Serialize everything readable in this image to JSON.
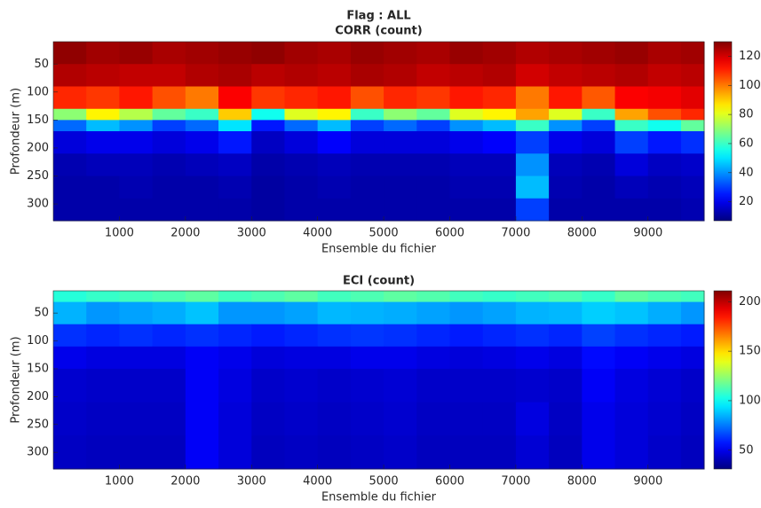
{
  "chart_data": [
    {
      "type": "heatmap",
      "suptitle": "Flag : ALL",
      "title": "CORR (count)",
      "xlabel": "Ensemble du fichier",
      "ylabel": "Profondeur (m)",
      "colormap": "jet",
      "xlim": [
        0,
        9850
      ],
      "ylim": [
        330,
        10
      ],
      "xticks": [
        1000,
        2000,
        3000,
        4000,
        5000,
        6000,
        7000,
        8000,
        9000
      ],
      "yticks": [
        50,
        100,
        150,
        200,
        250,
        300
      ],
      "clim": [
        7,
        130
      ],
      "cticks": [
        20,
        40,
        60,
        80,
        100,
        120
      ],
      "xbins": [
        0,
        500,
        1000,
        1500,
        2000,
        2500,
        3000,
        3500,
        4000,
        4500,
        5000,
        5500,
        6000,
        6500,
        7000,
        7500,
        8000,
        8500,
        9000,
        9500,
        9850
      ],
      "ybins": [
        10,
        50,
        90,
        130,
        150,
        170,
        210,
        250,
        290,
        330
      ],
      "values": [
        [
          128,
          126,
          127,
          125,
          126,
          127,
          128,
          126,
          125,
          127,
          126,
          125,
          127,
          126,
          124,
          125,
          126,
          127,
          125,
          126
        ],
        [
          124,
          123,
          122,
          122,
          124,
          125,
          123,
          124,
          123,
          125,
          124,
          122,
          123,
          124,
          120,
          122,
          123,
          124,
          122,
          123
        ],
        [
          110,
          108,
          112,
          105,
          100,
          115,
          108,
          110,
          112,
          105,
          110,
          108,
          112,
          110,
          100,
          112,
          104,
          115,
          116,
          118
        ],
        [
          70,
          85,
          75,
          65,
          60,
          90,
          55,
          80,
          85,
          60,
          70,
          65,
          80,
          85,
          95,
          80,
          60,
          95,
          105,
          110
        ],
        [
          35,
          45,
          40,
          30,
          35,
          50,
          25,
          35,
          45,
          30,
          35,
          30,
          40,
          45,
          60,
          40,
          30,
          60,
          55,
          65
        ],
        [
          18,
          20,
          20,
          18,
          20,
          25,
          15,
          18,
          22,
          18,
          18,
          18,
          20,
          22,
          30,
          20,
          18,
          30,
          25,
          28
        ],
        [
          13,
          14,
          14,
          13,
          14,
          15,
          12,
          13,
          14,
          13,
          13,
          13,
          14,
          14,
          40,
          14,
          13,
          18,
          15,
          16
        ],
        [
          12,
          12,
          13,
          12,
          12,
          13,
          11,
          12,
          13,
          12,
          12,
          12,
          13,
          13,
          45,
          13,
          12,
          14,
          13,
          14
        ],
        [
          12,
          12,
          12,
          12,
          12,
          12,
          11,
          12,
          12,
          12,
          12,
          12,
          12,
          12,
          30,
          12,
          12,
          12,
          12,
          13
        ]
      ]
    },
    {
      "type": "heatmap",
      "title": "ECI (count)",
      "xlabel": "Ensemble du fichier",
      "ylabel": "Profondeur (m)",
      "colormap": "jet",
      "xlim": [
        0,
        9850
      ],
      "ylim": [
        330,
        10
      ],
      "xticks": [
        1000,
        2000,
        3000,
        4000,
        5000,
        6000,
        7000,
        8000,
        9000
      ],
      "yticks": [
        50,
        100,
        150,
        200,
        250,
        300
      ],
      "clim": [
        31,
        211
      ],
      "cticks": [
        50,
        100,
        150,
        200
      ],
      "xbins": [
        0,
        500,
        1000,
        1500,
        2000,
        2500,
        3000,
        3500,
        4000,
        4500,
        5000,
        5500,
        6000,
        6500,
        7000,
        7500,
        8000,
        8500,
        9000,
        9500,
        9850
      ],
      "ybins": [
        10,
        30,
        70,
        110,
        150,
        210,
        270,
        330
      ],
      "values": [
        [
          105,
          108,
          110,
          112,
          115,
          110,
          112,
          115,
          110,
          112,
          115,
          113,
          110,
          108,
          110,
          112,
          108,
          115,
          112,
          110
        ],
        [
          85,
          80,
          82,
          84,
          88,
          80,
          80,
          82,
          86,
          85,
          84,
          82,
          80,
          82,
          85,
          86,
          90,
          88,
          84,
          80
        ],
        [
          62,
          60,
          62,
          60,
          62,
          60,
          58,
          60,
          62,
          63,
          62,
          60,
          58,
          60,
          62,
          60,
          65,
          62,
          60,
          58
        ],
        [
          50,
          48,
          48,
          48,
          52,
          50,
          47,
          48,
          48,
          50,
          50,
          48,
          47,
          48,
          50,
          48,
          55,
          52,
          50,
          48
        ],
        [
          45,
          44,
          44,
          44,
          52,
          48,
          44,
          45,
          44,
          45,
          46,
          44,
          44,
          44,
          45,
          44,
          52,
          48,
          46,
          44
        ],
        [
          44,
          43,
          43,
          43,
          52,
          47,
          43,
          44,
          43,
          44,
          45,
          43,
          43,
          43,
          48,
          43,
          50,
          47,
          45,
          43
        ],
        [
          43,
          42,
          42,
          42,
          52,
          47,
          42,
          43,
          42,
          43,
          44,
          42,
          42,
          42,
          46,
          42,
          50,
          47,
          44,
          42
        ]
      ]
    }
  ]
}
